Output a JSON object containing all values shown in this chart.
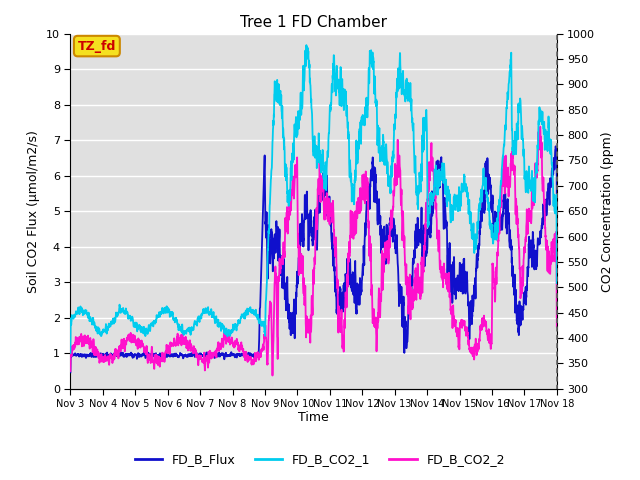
{
  "title": "Tree 1 FD Chamber",
  "ylabel_left": "Soil CO2 Flux (μmol/m2/s)",
  "ylabel_right": "CO2 Concentration (ppm)",
  "xlabel": "Time",
  "ylim_left": [
    0.0,
    10.0
  ],
  "ylim_right": [
    300,
    1000
  ],
  "bg_color": "#e0e0e0",
  "annotation_text": "TZ_fd",
  "annotation_box_color": "#f5e020",
  "annotation_text_color": "#cc0000",
  "annotation_edge_color": "#cc8800",
  "x_tick_labels": [
    "Nov 3",
    "Nov 4",
    "Nov 5",
    "Nov 6",
    "Nov 7",
    "Nov 8",
    "Nov 9",
    "Nov 10",
    "Nov 11",
    "Nov 12",
    "Nov 13",
    "Nov 14",
    "Nov 15",
    "Nov 16",
    "Nov 17",
    "Nov 18"
  ],
  "legend_entries": [
    "FD_B_Flux",
    "FD_B_CO2_1",
    "FD_B_CO2_2"
  ],
  "color_flux": "#1010cc",
  "color_co2_1": "#00ccee",
  "color_co2_2": "#ff10cc",
  "lw_flux": 1.3,
  "lw_co2": 1.3
}
